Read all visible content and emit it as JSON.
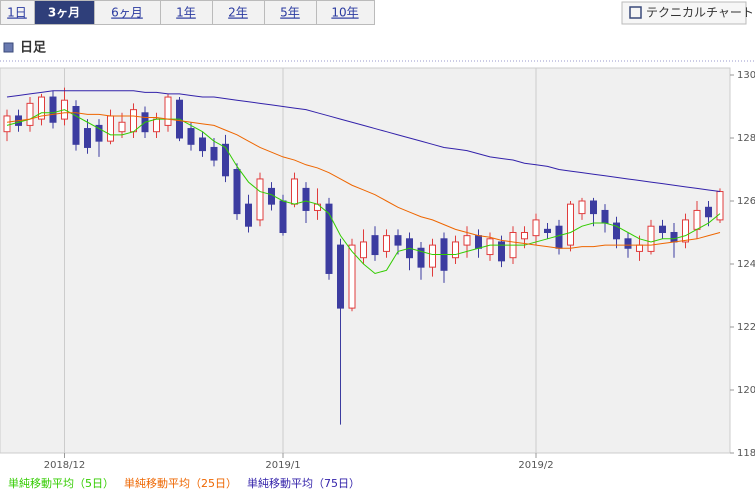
{
  "tabs": [
    {
      "label": "1日"
    },
    {
      "label": "3ヶ月",
      "active": true
    },
    {
      "label": "6ヶ月"
    },
    {
      "label": "1年"
    },
    {
      "label": "2年"
    },
    {
      "label": "5年"
    },
    {
      "label": "10年"
    }
  ],
  "button": "テクニカルチャート",
  "heading": "日足",
  "chart_data": {
    "type": "candlestick",
    "categories": [
      null,
      null,
      null,
      null,
      null,
      "2018/12",
      null,
      null,
      null,
      null,
      null,
      null,
      null,
      null,
      null,
      null,
      null,
      null,
      null,
      null,
      null,
      null,
      null,
      null,
      "2019/1",
      null,
      null,
      null,
      null,
      null,
      null,
      null,
      null,
      null,
      null,
      null,
      null,
      null,
      null,
      null,
      null,
      null,
      null,
      null,
      null,
      null,
      "2019/2",
      null,
      null,
      null,
      null,
      null,
      null,
      null,
      null,
      null,
      null,
      null,
      null,
      null,
      null,
      null,
      null
    ],
    "open": [
      128.2,
      128.7,
      128.4,
      128.6,
      129.3,
      128.6,
      129.0,
      128.3,
      128.4,
      127.9,
      128.2,
      128.2,
      128.8,
      128.2,
      128.4,
      129.2,
      128.3,
      128.0,
      127.7,
      127.8,
      127.0,
      125.9,
      125.4,
      126.4,
      126.0,
      125.9,
      126.4,
      125.7,
      125.9,
      124.6,
      122.6,
      124.2,
      124.9,
      124.4,
      124.9,
      124.8,
      124.5,
      123.9,
      124.8,
      124.2,
      124.6,
      124.9,
      124.3,
      124.7,
      124.2,
      124.8,
      124.9,
      125.1,
      125.2,
      124.6,
      125.6,
      126.0,
      125.7,
      125.3,
      124.8,
      124.4,
      124.4,
      125.2,
      125.0,
      124.7,
      125.1,
      125.8,
      125.4
    ],
    "close": [
      128.7,
      128.4,
      129.1,
      129.3,
      128.5,
      129.2,
      127.8,
      127.7,
      127.9,
      128.7,
      128.5,
      128.9,
      128.2,
      128.6,
      129.3,
      128.0,
      127.8,
      127.6,
      127.3,
      126.8,
      125.6,
      125.2,
      126.7,
      125.9,
      125.0,
      126.7,
      125.7,
      125.9,
      123.7,
      122.6,
      124.6,
      124.7,
      124.3,
      124.9,
      124.6,
      124.2,
      123.9,
      124.6,
      123.8,
      124.7,
      124.9,
      124.5,
      124.8,
      124.1,
      125.0,
      125.0,
      125.4,
      125.0,
      124.5,
      125.9,
      126.0,
      125.6,
      125.3,
      124.8,
      124.5,
      124.6,
      125.2,
      125.0,
      124.7,
      125.4,
      125.7,
      125.5,
      126.3
    ],
    "high": [
      128.9,
      128.9,
      129.3,
      129.4,
      129.5,
      129.6,
      129.2,
      128.6,
      128.6,
      128.9,
      128.8,
      129.1,
      129.0,
      128.8,
      129.4,
      129.3,
      128.5,
      128.2,
      128.0,
      128.1,
      127.2,
      126.2,
      126.9,
      126.6,
      126.2,
      126.9,
      126.6,
      126.4,
      126.1,
      124.8,
      124.8,
      125.1,
      125.2,
      125.1,
      125.1,
      125.0,
      124.7,
      124.8,
      125.0,
      124.9,
      125.2,
      125.1,
      125.0,
      124.9,
      125.2,
      125.2,
      125.6,
      125.3,
      125.4,
      126.0,
      126.1,
      126.1,
      125.9,
      125.5,
      125.0,
      124.9,
      125.4,
      125.4,
      125.3,
      125.6,
      126.0,
      126.0,
      126.4
    ],
    "low": [
      127.9,
      128.2,
      128.2,
      128.4,
      128.3,
      128.4,
      127.6,
      127.5,
      127.4,
      127.8,
      128.0,
      128.0,
      128.0,
      128.0,
      128.2,
      127.9,
      127.6,
      127.4,
      127.1,
      126.6,
      125.4,
      125.0,
      125.2,
      125.7,
      124.9,
      125.8,
      125.3,
      125.4,
      123.5,
      118.9,
      122.5,
      124.0,
      124.1,
      124.2,
      124.3,
      123.8,
      123.5,
      123.6,
      123.4,
      124.0,
      124.2,
      124.2,
      124.1,
      123.9,
      124.0,
      124.5,
      124.6,
      124.8,
      124.3,
      124.4,
      125.4,
      125.2,
      125.0,
      124.5,
      124.2,
      124.1,
      124.3,
      124.8,
      124.2,
      124.5,
      124.8,
      125.2,
      125.3
    ],
    "up_color": "#e03c3c",
    "down_color": "#3c3ca0",
    "lines": [
      {
        "name": "単純移動平均（5日）",
        "color": "#33cc00",
        "values": [
          128.4,
          128.5,
          128.6,
          128.8,
          128.8,
          128.9,
          128.7,
          128.5,
          128.3,
          128.1,
          128.1,
          128.2,
          128.5,
          128.6,
          128.6,
          128.6,
          128.4,
          128.2,
          127.9,
          127.7,
          127.1,
          126.6,
          126.3,
          126.2,
          126.0,
          125.9,
          126.0,
          125.9,
          125.6,
          124.9,
          124.4,
          124.0,
          123.7,
          123.8,
          124.4,
          124.5,
          124.4,
          124.3,
          124.3,
          124.3,
          124.4,
          124.5,
          124.6,
          124.6,
          124.6,
          124.6,
          124.7,
          124.8,
          124.9,
          125.0,
          125.2,
          125.3,
          125.3,
          125.2,
          125.0,
          124.8,
          124.7,
          124.8,
          124.8,
          124.9,
          125.1,
          125.3,
          125.6
        ]
      },
      {
        "name": "単純移動平均（25日）",
        "color": "#ee6600",
        "values": [
          128.5,
          128.55,
          128.6,
          128.7,
          128.75,
          128.8,
          128.8,
          128.75,
          128.75,
          128.7,
          128.7,
          128.7,
          128.65,
          128.65,
          128.6,
          128.55,
          128.5,
          128.45,
          128.4,
          128.25,
          128.1,
          127.9,
          127.7,
          127.55,
          127.4,
          127.3,
          127.15,
          127.05,
          126.9,
          126.7,
          126.5,
          126.35,
          126.2,
          126.0,
          125.8,
          125.65,
          125.5,
          125.4,
          125.25,
          125.1,
          125.0,
          124.9,
          124.85,
          124.75,
          124.7,
          124.65,
          124.6,
          124.55,
          124.5,
          124.5,
          124.55,
          124.55,
          124.6,
          124.6,
          124.6,
          124.6,
          124.6,
          124.65,
          124.7,
          124.75,
          124.8,
          124.9,
          125.0
        ]
      },
      {
        "name": "単純移動平均（75日）",
        "color": "#3322aa",
        "values": [
          129.3,
          129.35,
          129.4,
          129.45,
          129.5,
          129.5,
          129.5,
          129.5,
          129.5,
          129.5,
          129.5,
          129.5,
          129.45,
          129.45,
          129.4,
          129.4,
          129.35,
          129.3,
          129.3,
          129.25,
          129.2,
          129.15,
          129.1,
          129.05,
          129.0,
          128.95,
          128.9,
          128.8,
          128.7,
          128.6,
          128.5,
          128.4,
          128.3,
          128.2,
          128.1,
          128.0,
          127.9,
          127.8,
          127.7,
          127.65,
          127.6,
          127.5,
          127.4,
          127.35,
          127.3,
          127.2,
          127.15,
          127.1,
          127.0,
          126.95,
          126.9,
          126.85,
          126.8,
          126.75,
          126.7,
          126.65,
          126.6,
          126.55,
          126.5,
          126.45,
          126.4,
          126.35,
          126.3
        ]
      }
    ],
    "ylim": [
      118,
      130
    ],
    "yticks": [
      118,
      120,
      122,
      124,
      126,
      128,
      130
    ]
  }
}
